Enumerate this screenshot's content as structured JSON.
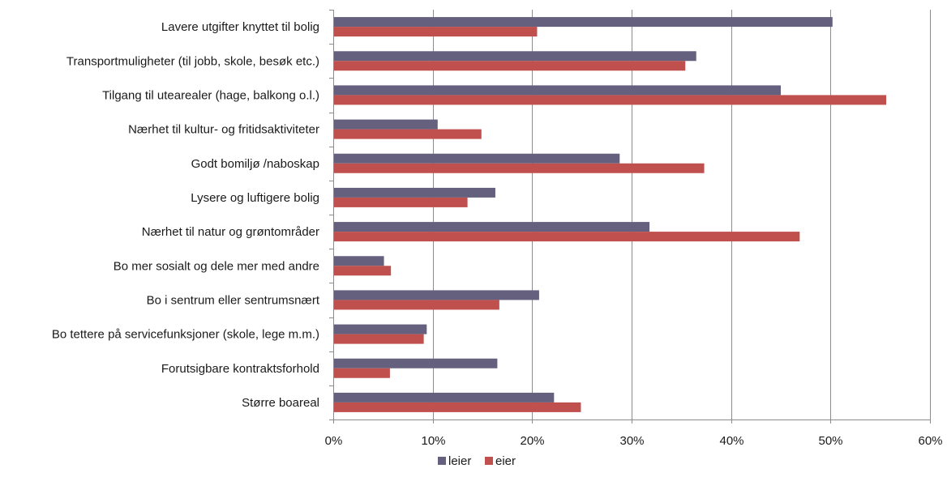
{
  "chart_data": {
    "type": "bar",
    "orientation": "horizontal",
    "categories": [
      "Lavere utgifter knyttet til bolig",
      "Transportmuligheter (til jobb, skole, besøk etc.)",
      "Tilgang til utearealer (hage, balkong o.l.)",
      "Nærhet til kultur- og fritidsaktiviteter",
      "Godt bomiljø /naboskap",
      "Lysere og luftigere bolig",
      "Nærhet til natur og grøntområder",
      "Bo mer sosialt og dele mer med andre",
      "Bo i sentrum eller sentrumsnært",
      "Bo tettere på servicefunksjoner (skole, lege m.m.)",
      "Forutsigbare kontraktsforhold",
      "Større boareal"
    ],
    "series": [
      {
        "name": "leier",
        "color": "#64607e",
        "values": [
          0.502,
          0.365,
          0.45,
          0.105,
          0.288,
          0.163,
          0.318,
          0.051,
          0.207,
          0.094,
          0.165,
          0.222
        ]
      },
      {
        "name": "eier",
        "color": "#c0504d",
        "values": [
          0.205,
          0.354,
          0.556,
          0.149,
          0.373,
          0.135,
          0.469,
          0.058,
          0.167,
          0.091,
          0.057,
          0.249
        ]
      }
    ],
    "xlim": [
      0,
      0.6
    ],
    "xticks": [
      0,
      0.1,
      0.2,
      0.3,
      0.4,
      0.5,
      0.6
    ],
    "xtick_labels": [
      "0%",
      "10%",
      "20%",
      "30%",
      "40%",
      "50%",
      "60%"
    ],
    "grid": "vertical",
    "legend_position": "bottom-center",
    "title": "",
    "xlabel": "",
    "ylabel": ""
  }
}
